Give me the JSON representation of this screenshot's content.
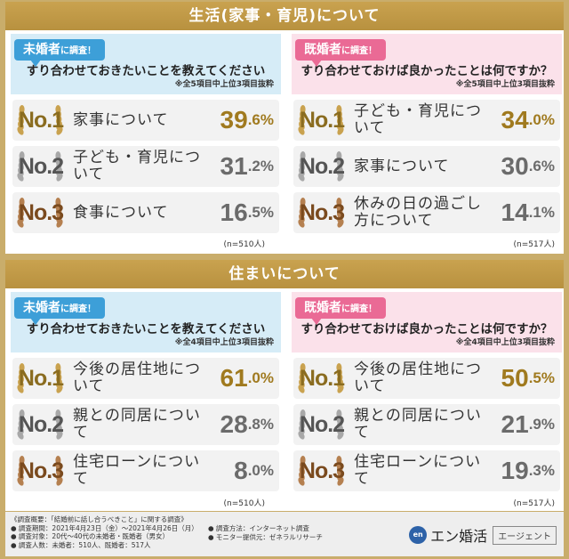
{
  "sections": [
    {
      "title": "生活(家事・育児)について",
      "cards": [
        {
          "tag_main": "未婚者",
          "tag_sub": "に調査！",
          "question": "すり合わせておきたいことを教えてください",
          "note": "※全5項目中上位3項目抜粋",
          "rows": [
            {
              "rank": "No.1",
              "label": "家事について",
              "big": "39",
              "dec": ".6%"
            },
            {
              "rank": "No.2",
              "label": "子ども・育児について",
              "big": "31",
              "dec": ".2%"
            },
            {
              "rank": "No.3",
              "label": "食事について",
              "big": "16",
              "dec": ".5%"
            }
          ],
          "n": "(n=510人)"
        },
        {
          "tag_main": "既婚者",
          "tag_sub": "に調査！",
          "question": "すり合わせておけば良かったことは何ですか？",
          "note": "※全5項目中上位3項目抜粋",
          "rows": [
            {
              "rank": "No.1",
              "label": "子ども・育児について",
              "big": "34",
              "dec": ".0%"
            },
            {
              "rank": "No.2",
              "label": "家事について",
              "big": "30",
              "dec": ".6%"
            },
            {
              "rank": "No.3",
              "label": "休みの日の過ごし方について",
              "big": "14",
              "dec": ".1%"
            }
          ],
          "n": "(n=517人)"
        }
      ]
    },
    {
      "title": "住まいについて",
      "cards": [
        {
          "tag_main": "未婚者",
          "tag_sub": "に調査！",
          "question": "すり合わせておきたいことを教えてください",
          "note": "※全4項目中上位3項目抜粋",
          "rows": [
            {
              "rank": "No.1",
              "label": "今後の居住地について",
              "big": "61",
              "dec": ".0%"
            },
            {
              "rank": "No.2",
              "label": "親との同居について",
              "big": "28",
              "dec": ".8%"
            },
            {
              "rank": "No.3",
              "label": "住宅ローンについて",
              "big": "8",
              "dec": ".0%"
            }
          ],
          "n": "(n=510人)"
        },
        {
          "tag_main": "既婚者",
          "tag_sub": "に調査！",
          "question": "すり合わせておけば良かったことは何ですか？",
          "note": "※全4項目中上位3項目抜粋",
          "rows": [
            {
              "rank": "No.1",
              "label": "今後の居住地について",
              "big": "50",
              "dec": ".5%"
            },
            {
              "rank": "No.2",
              "label": "親との同居について",
              "big": "21",
              "dec": ".9%"
            },
            {
              "rank": "No.3",
              "label": "住宅ローンについて",
              "big": "19",
              "dec": ".3%"
            }
          ],
          "n": "(n=517人)"
        }
      ]
    }
  ],
  "footer": {
    "left": [
      "《調査概要：「結婚前に話し合うべきこと」に関する調査》",
      "● 調査期間：2021年4月23日（金）〜2021年4月26日（月）",
      "● 調査対象：20代〜40代の未婚者・既婚者（男女）",
      "● 調査人数：未婚者：510人、既婚者：517人"
    ],
    "right": [
      "● 調査方法：インターネット調査",
      "● モニター提供元：ゼネラルリサーチ"
    ],
    "logo_mark": "en",
    "logo_text": "エン婚活",
    "logo_agent": "エージェント"
  },
  "colors": {
    "gold": "#a07a1f",
    "unmarried_blue": "#3d9fd8",
    "married_pink": "#ea6a95",
    "section_bar": "#c9a24f"
  }
}
